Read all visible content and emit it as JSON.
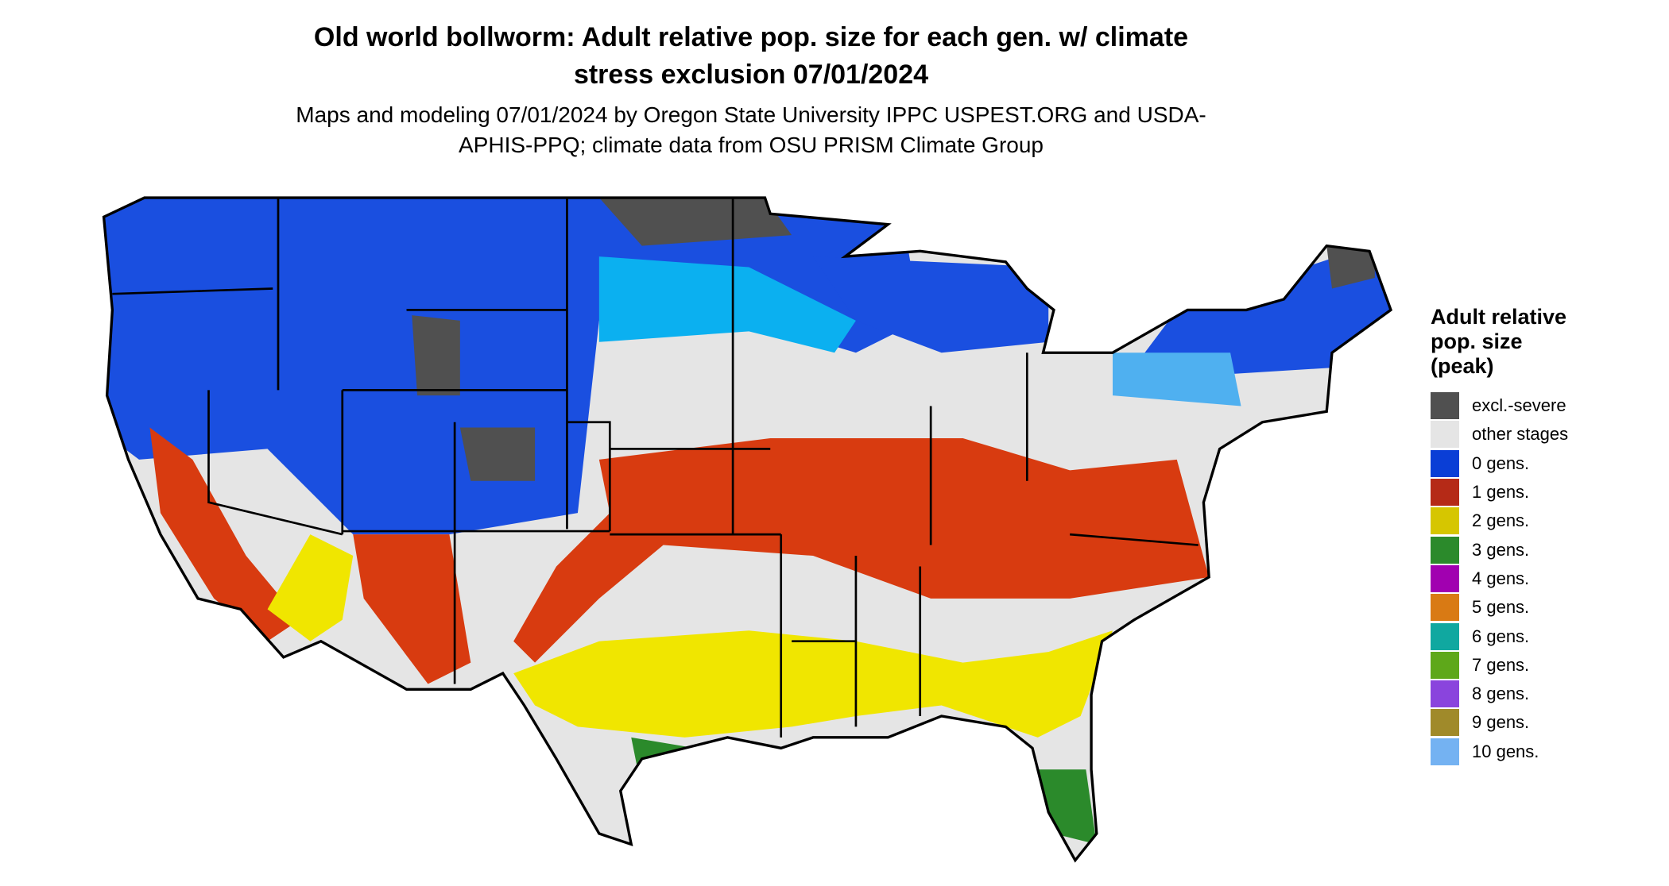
{
  "title": "Old world bollworm: Adult relative pop. size for each gen. w/ climate stress exclusion 07/01/2024",
  "subtitle": "Maps and modeling 07/01/2024 by Oregon State University IPPC USPEST.ORG and USDA-APHIS-PPQ; climate data from OSU PRISM Climate Group",
  "legend": {
    "title": "Adult relative pop. size (peak)",
    "items": [
      {
        "label": "excl.-severe",
        "color": "#505050"
      },
      {
        "label": "other stages",
        "color": "#e5e5e5"
      },
      {
        "label": "0 gens.",
        "color": "#0a3ed6"
      },
      {
        "label": "1 gens.",
        "color": "#b52a17"
      },
      {
        "label": "2 gens.",
        "color": "#d6c600"
      },
      {
        "label": "3 gens.",
        "color": "#2b8a2b"
      },
      {
        "label": "4 gens.",
        "color": "#a100b0"
      },
      {
        "label": "5 gens.",
        "color": "#d97a14"
      },
      {
        "label": "6 gens.",
        "color": "#10a8a0"
      },
      {
        "label": "7 gens.",
        "color": "#5ea81a"
      },
      {
        "label": "8 gens.",
        "color": "#8a44dd"
      },
      {
        "label": "9 gens.",
        "color": "#a08a2a"
      },
      {
        "label": "10 gens.",
        "color": "#74b2f2"
      }
    ]
  }
}
